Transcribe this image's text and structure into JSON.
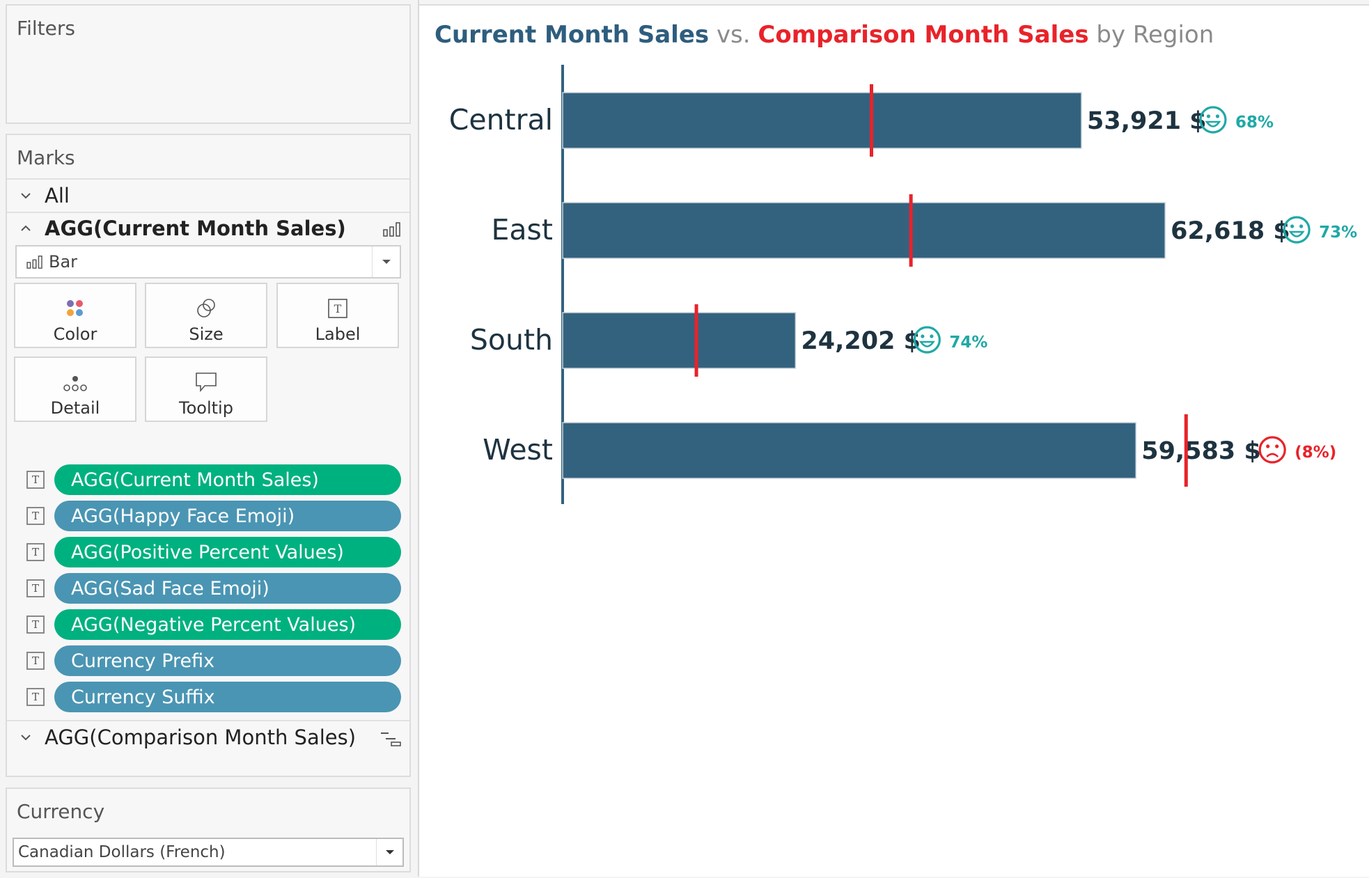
{
  "sidebar": {
    "filters_title": "Filters",
    "marks_title": "Marks",
    "all_label": "All",
    "current_layer_label": "AGG(Current Month Sales)",
    "mark_type": "Bar",
    "tiles": [
      "Color",
      "Size",
      "Label",
      "Detail",
      "Tooltip"
    ],
    "pills": [
      {
        "label": "AGG(Current Month Sales)",
        "color": "green"
      },
      {
        "label": "AGG(Happy Face Emoji)",
        "color": "blue"
      },
      {
        "label": "AGG(Positive Percent Values)",
        "color": "green"
      },
      {
        "label": "AGG(Sad Face Emoji)",
        "color": "blue"
      },
      {
        "label": "AGG(Negative Percent Values)",
        "color": "green"
      },
      {
        "label": "Currency Prefix",
        "color": "blue"
      },
      {
        "label": "Currency Suffix",
        "color": "blue"
      }
    ],
    "comparison_layer_label": "AGG(Comparison Month Sales)",
    "currency_title": "Currency",
    "currency_value": "Canadian Dollars (French)"
  },
  "viz": {
    "title_current": "Current Month Sales",
    "title_vs": "vs.",
    "title_comparison": "Comparison Month Sales",
    "title_by": "by",
    "title_region": "Region"
  },
  "colors": {
    "bar": "#33627f",
    "target": "#e8232a",
    "positive": "#1fa9a6",
    "negative": "#e8232a",
    "label": "#1e3340",
    "pill_green": "#00b180",
    "pill_blue": "#4a95b3"
  },
  "chart_data": {
    "type": "bar",
    "orientation": "horizontal",
    "categories": [
      "Central",
      "East",
      "South",
      "West"
    ],
    "series": [
      {
        "name": "Current Month Sales",
        "values": [
          53921,
          62618,
          24202,
          59583
        ]
      },
      {
        "name": "Comparison Month Sales",
        "values": [
          32100,
          36200,
          13900,
          64800
        ]
      }
    ],
    "value_labels": [
      "53,921 $",
      "62,618 $",
      "24,202 $",
      "59,583 $"
    ],
    "percent_labels": [
      "68%",
      "73%",
      "74%",
      "(8%)"
    ],
    "sentiment": [
      "happy",
      "happy",
      "happy",
      "sad"
    ],
    "xlim": [
      0,
      65000
    ]
  }
}
